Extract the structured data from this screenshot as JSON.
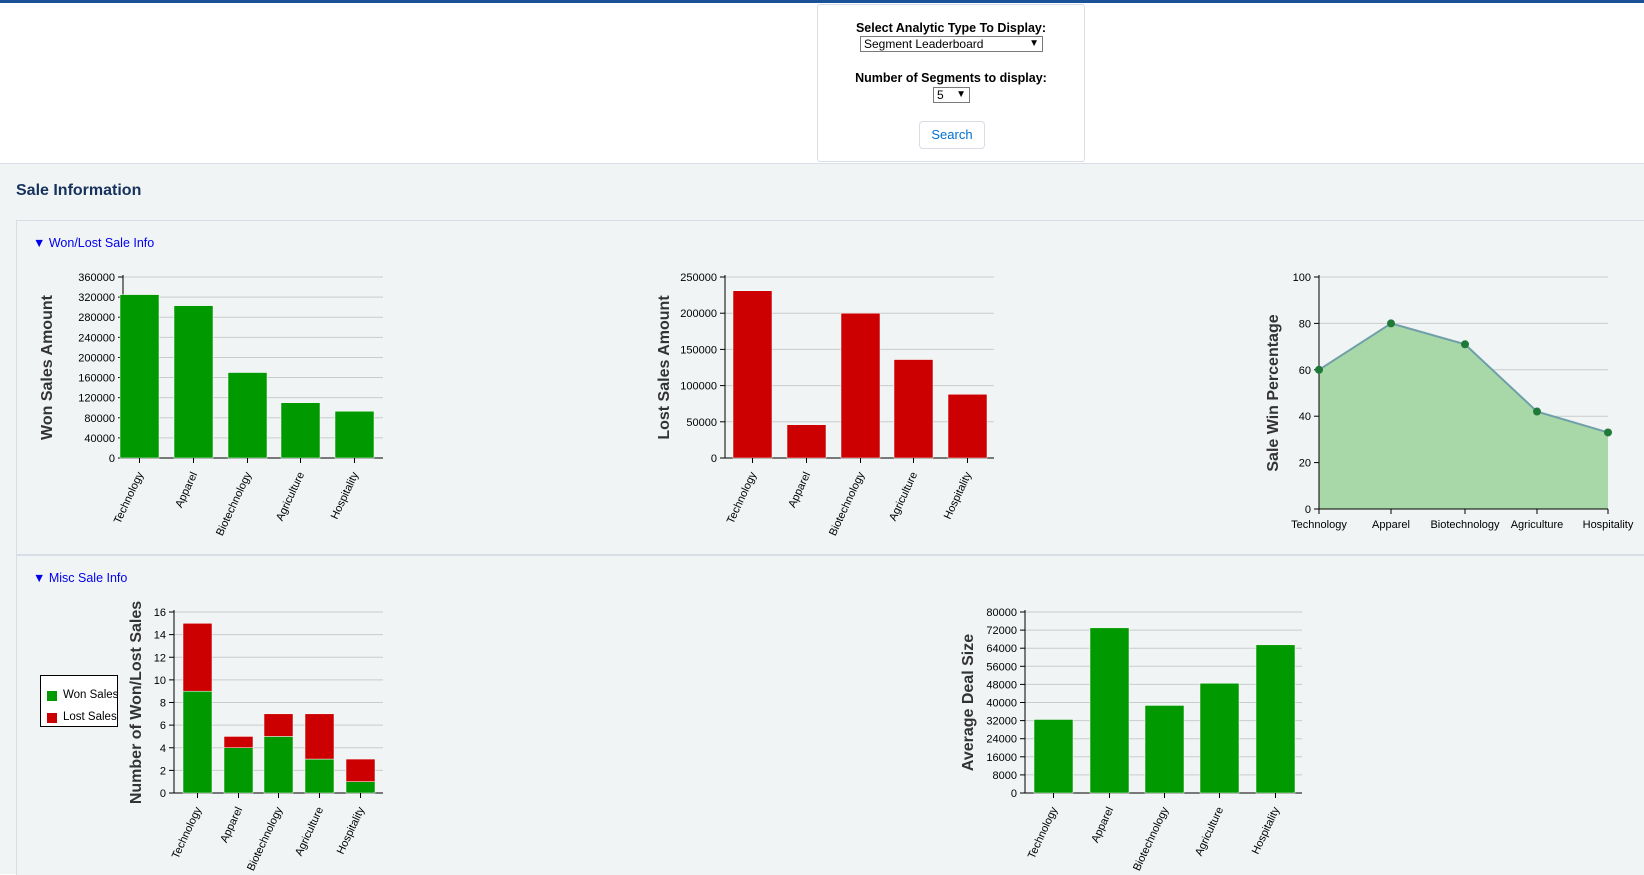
{
  "filters": {
    "analytic_label": "Select Analytic Type To Display:",
    "analytic_value": "Segment Leaderboard",
    "segments_label": "Number of Segments to display:",
    "segments_value": "5",
    "search_label": "Search"
  },
  "section": {
    "title": "Sale Information"
  },
  "panels": {
    "won_lost": {
      "toggle": "▼ Won/Lost Sale Info"
    },
    "misc": {
      "toggle": "▼ Misc Sale Info"
    }
  },
  "legend": {
    "won": "Won Sales",
    "lost": "Lost Sales"
  },
  "colors": {
    "won": "#009900",
    "lost": "#cc0000",
    "area": "#a8d8a8",
    "line": "#6f9fa8",
    "point": "#1f7a3a"
  },
  "chart_data": [
    {
      "id": "won",
      "type": "bar",
      "ylabel": "Won Sales Amount",
      "categories": [
        "Technology",
        "Apparel",
        "Biotechnology",
        "Agriculture",
        "Hospitality"
      ],
      "values": [
        325000,
        303000,
        170000,
        110000,
        93000
      ],
      "ylim": [
        0,
        360000
      ],
      "yticks": [
        0,
        40000,
        80000,
        120000,
        160000,
        200000,
        240000,
        280000,
        320000,
        360000
      ],
      "grid": true
    },
    {
      "id": "lost",
      "type": "bar",
      "ylabel": "Lost Sales Amount",
      "categories": [
        "Technology",
        "Apparel",
        "Biotechnology",
        "Agriculture",
        "Hospitality"
      ],
      "values": [
        231000,
        46000,
        200000,
        136000,
        88000
      ],
      "ylim": [
        0,
        250000
      ],
      "yticks": [
        0,
        50000,
        100000,
        150000,
        200000,
        250000
      ],
      "grid": true
    },
    {
      "id": "winpct",
      "type": "area",
      "ylabel": "Sale Win Percentage",
      "categories": [
        "Technology",
        "Apparel",
        "Biotechnology",
        "Agriculture",
        "Hospitality"
      ],
      "values": [
        60,
        80,
        71,
        42,
        33
      ],
      "ylim": [
        0,
        100
      ],
      "yticks": [
        0,
        20,
        40,
        60,
        80,
        100
      ],
      "grid": true
    },
    {
      "id": "count",
      "type": "bar",
      "stacked": true,
      "ylabel": "Number of Won/Lost Sales",
      "categories": [
        "Technology",
        "Apparel",
        "Biotechnology",
        "Agriculture",
        "Hospitality"
      ],
      "series": [
        {
          "name": "Won Sales",
          "values": [
            9,
            4,
            5,
            3,
            1
          ]
        },
        {
          "name": "Lost Sales",
          "values": [
            6,
            1,
            2,
            4,
            2
          ]
        }
      ],
      "ylim": [
        0,
        16
      ],
      "yticks": [
        0,
        2,
        4,
        6,
        8,
        10,
        12,
        14,
        16
      ],
      "legend": "left",
      "grid": true
    },
    {
      "id": "deal",
      "type": "bar",
      "ylabel": "Average Deal Size",
      "categories": [
        "Technology",
        "Apparel",
        "Biotechnology",
        "Agriculture",
        "Hospitality"
      ],
      "values": [
        32500,
        73000,
        38700,
        48500,
        65500
      ],
      "ylim": [
        0,
        80000
      ],
      "yticks": [
        0,
        8000,
        16000,
        24000,
        32000,
        40000,
        48000,
        56000,
        64000,
        72000,
        80000
      ],
      "grid": true
    }
  ]
}
